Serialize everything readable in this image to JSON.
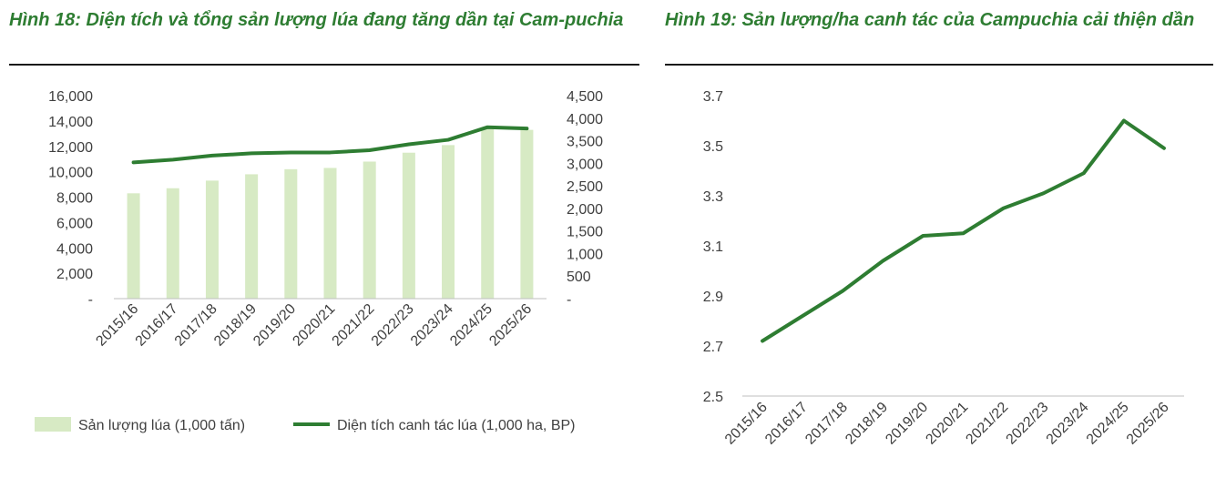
{
  "figures": [
    {
      "title": "Hình 18: Diện tích và tổng sản lượng lúa đang tăng dần tại Cam-puchia",
      "chart_data": {
        "type": "bar+line",
        "categories": [
          "2015/16",
          "2016/17",
          "2017/18",
          "2018/19",
          "2019/20",
          "2020/21",
          "2021/22",
          "2022/23",
          "2023/24",
          "2024/25",
          "2025/26"
        ],
        "series": [
          {
            "name": "Sản lượng lúa (1,000 tấn)",
            "type": "bar",
            "axis": "left",
            "values": [
              8300,
              8700,
              9300,
              9800,
              10200,
              10300,
              10800,
              11500,
              12100,
              13500,
              13300
            ]
          },
          {
            "name": "Diện tích canh tác lúa (1,000 ha, BP)",
            "type": "line",
            "axis": "right",
            "values": [
              3020,
              3080,
              3170,
              3220,
              3240,
              3240,
              3290,
              3420,
              3520,
              3800,
              3770
            ]
          }
        ],
        "y_left": {
          "min": 0,
          "max": 16000,
          "ticks": [
            "-",
            "2,000",
            "4,000",
            "6,000",
            "8,000",
            "10,000",
            "12,000",
            "14,000",
            "16,000"
          ]
        },
        "y_right": {
          "min": 0,
          "max": 4500,
          "ticks": [
            "-",
            "500",
            "1,000",
            "1,500",
            "2,000",
            "2,500",
            "3,000",
            "3,500",
            "4,000",
            "4,500"
          ]
        },
        "legend_position": "bottom",
        "colors": {
          "bar": "#d7eac4",
          "line": "#2e7d32"
        }
      }
    },
    {
      "title": "Hình 19: Sản lượng/ha canh tác của Campuchia cải thiện dần",
      "chart_data": {
        "type": "line",
        "categories": [
          "2015/16",
          "2016/17",
          "2017/18",
          "2018/19",
          "2019/20",
          "2020/21",
          "2021/22",
          "2022/23",
          "2023/24",
          "2024/25",
          "2025/26"
        ],
        "series": [
          {
            "values": [
              2.72,
              2.82,
              2.92,
              3.04,
              3.14,
              3.15,
              3.25,
              3.31,
              3.39,
              3.6,
              3.49
            ]
          }
        ],
        "y": {
          "min": 2.5,
          "max": 3.7,
          "ticks": [
            "2.5",
            "2.7",
            "2.9",
            "3.1",
            "3.3",
            "3.5",
            "3.7"
          ]
        },
        "colors": {
          "line": "#2e7d32"
        }
      }
    }
  ]
}
